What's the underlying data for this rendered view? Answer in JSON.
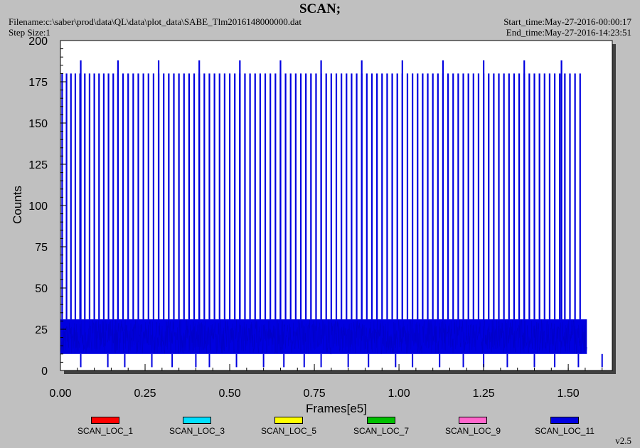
{
  "header": {
    "title": "SCAN;",
    "filename": "Filename:c:\\saber\\prod\\data\\QL\\data\\plot_data\\SABE_Tlm2016148000000.dat",
    "step_size": "Step Size:1",
    "start_time": "Start_time:May-27-2016-00:00:17",
    "end_time": "End_time:May-27-2016-14:23:51",
    "version": "v2.5"
  },
  "chart_data": {
    "type": "line",
    "xlabel": "Frames[e5]",
    "ylabel": "Counts",
    "xlim": [
      0.0,
      1.63
    ],
    "ylim": [
      0,
      200
    ],
    "x_ticks": [
      "0.00",
      "0.25",
      "0.50",
      "0.75",
      "1.00",
      "1.25",
      "1.50"
    ],
    "y_ticks": [
      "0",
      "25",
      "50",
      "75",
      "100",
      "125",
      "150",
      "175",
      "200"
    ],
    "grid": false,
    "legend_position": "bottom",
    "series": [
      {
        "name": "SCAN_LOC_1",
        "color": "#ff0000",
        "values": []
      },
      {
        "name": "SCAN_LOC_3",
        "color": "#00e0ff",
        "values": []
      },
      {
        "name": "SCAN_LOC_5",
        "color": "#ffff00",
        "values": []
      },
      {
        "name": "SCAN_LOC_7",
        "color": "#00c000",
        "values": []
      },
      {
        "name": "SCAN_LOC_9",
        "color": "#ff66cc",
        "values": []
      },
      {
        "name": "SCAN_LOC_11",
        "color": "#0000e0",
        "baseline_range": [
          10,
          31
        ],
        "spike_peak": 180,
        "tall_spike_peak": 188,
        "spike_x": [
          0.005,
          0.018,
          0.031,
          0.044,
          0.058,
          0.072,
          0.086,
          0.1,
          0.114,
          0.128,
          0.142,
          0.156,
          0.17,
          0.185,
          0.2,
          0.215,
          0.23,
          0.245,
          0.26,
          0.275,
          0.29,
          0.305,
          0.32,
          0.335,
          0.35,
          0.365,
          0.38,
          0.395,
          0.41,
          0.425,
          0.44,
          0.455,
          0.47,
          0.485,
          0.5,
          0.515,
          0.53,
          0.545,
          0.56,
          0.575,
          0.59,
          0.605,
          0.62,
          0.635,
          0.65,
          0.665,
          0.68,
          0.695,
          0.71,
          0.725,
          0.74,
          0.755,
          0.77,
          0.785,
          0.8,
          0.815,
          0.83,
          0.845,
          0.86,
          0.875,
          0.89,
          0.905,
          0.92,
          0.935,
          0.95,
          0.965,
          0.98,
          0.995,
          1.01,
          1.025,
          1.04,
          1.055,
          1.07,
          1.085,
          1.1,
          1.115,
          1.13,
          1.145,
          1.16,
          1.175,
          1.19,
          1.205,
          1.22,
          1.235,
          1.25,
          1.265,
          1.28,
          1.295,
          1.31,
          1.325,
          1.34,
          1.355,
          1.37,
          1.385,
          1.4,
          1.415,
          1.43,
          1.445,
          1.46,
          1.475,
          1.49,
          1.505,
          1.52,
          1.535
        ],
        "tall_spike_x": [
          0.06,
          0.17,
          0.29,
          0.41,
          0.53,
          0.65,
          0.77,
          0.89,
          1.01,
          1.13,
          1.25,
          1.37,
          1.48
        ],
        "low_dip_x": [
          0.06,
          0.14,
          0.19,
          0.27,
          0.33,
          0.4,
          0.44,
          0.52,
          0.6,
          0.66,
          0.72,
          0.77,
          0.85,
          0.91,
          0.99,
          1.04,
          1.12,
          1.19,
          1.25,
          1.32,
          1.4,
          1.46,
          1.53,
          1.6
        ],
        "x_end": 1.555
      }
    ]
  }
}
